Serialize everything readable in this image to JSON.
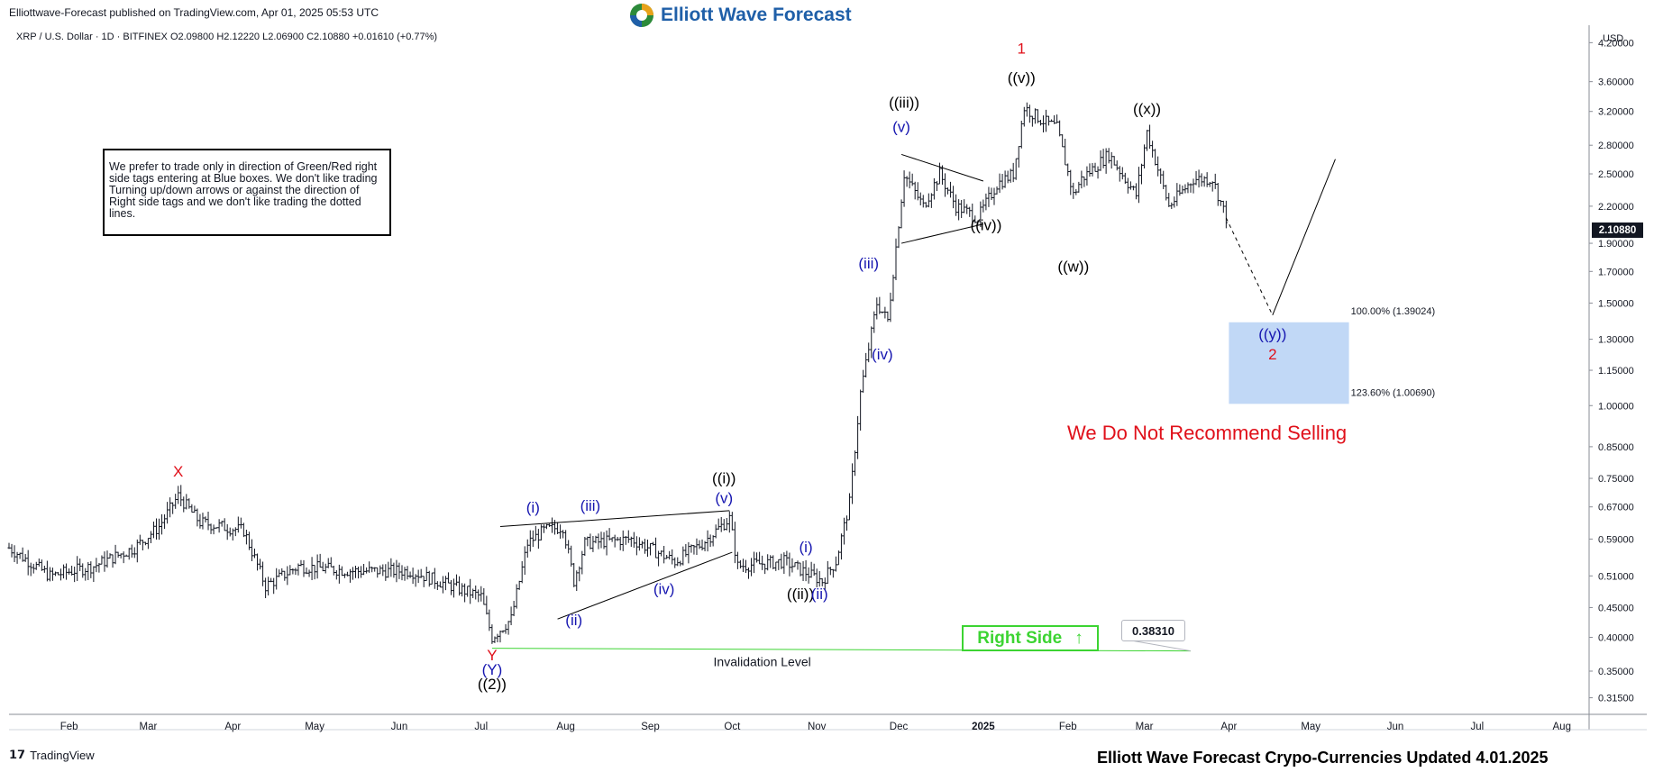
{
  "header": {
    "published": "Elliottwave-Forecast published on TradingView.com, Apr 01, 2025 05:53 UTC",
    "logo_text": "Elliott Wave Forecast"
  },
  "legend": {
    "symbol": "XRP / U.S. Dollar · 1D · BITFINEX",
    "open": "O2.09800",
    "high": "H2.12220",
    "low": "L2.06900",
    "close": "C2.10880",
    "change": "+0.01610 (+0.77%)"
  },
  "disclaimer": "We prefer to trade only in direction of Green/Red right side tags entering at Blue boxes. We don't like trading Turning up/down arrows or against the direction of Right side tags and we don't like trading the dotted lines.",
  "no_sell": "We Do Not Recommend Selling",
  "right_side": {
    "label": "Right Side",
    "arrow": "↑"
  },
  "invalidation": {
    "label": "Invalidation Level",
    "price": "0.38310",
    "value": 0.3831
  },
  "current_price": "2.10880",
  "footer": "Elliott Wave Forecast Crypo-Currencies Updated 4.01.2025",
  "tv_brand": "TradingView",
  "colors": {
    "up": "#131722",
    "blue_box": "#b6d1f5",
    "green": "#3cd432",
    "red": "#e0101a",
    "navy": "#1616b0"
  },
  "chart_data": {
    "type": "ohlc",
    "scale": "log",
    "y_unit": "USD",
    "ylim": [
      0.295,
      4.5
    ],
    "xlim": [
      "2024-01-10",
      "2025-08-10"
    ],
    "x_ticks": [
      {
        "label": "Feb",
        "date": "2024-02-01"
      },
      {
        "label": "Mar",
        "date": "2024-03-01"
      },
      {
        "label": "Apr",
        "date": "2024-04-01"
      },
      {
        "label": "May",
        "date": "2024-05-01"
      },
      {
        "label": "Jun",
        "date": "2024-06-01"
      },
      {
        "label": "Jul",
        "date": "2024-07-01"
      },
      {
        "label": "Aug",
        "date": "2024-08-01"
      },
      {
        "label": "Sep",
        "date": "2024-09-01"
      },
      {
        "label": "Oct",
        "date": "2024-10-01"
      },
      {
        "label": "Nov",
        "date": "2024-11-01"
      },
      {
        "label": "Dec",
        "date": "2024-12-01"
      },
      {
        "label": "2025",
        "date": "2025-01-01"
      },
      {
        "label": "Feb",
        "date": "2025-02-01"
      },
      {
        "label": "Mar",
        "date": "2025-03-01"
      },
      {
        "label": "Apr",
        "date": "2025-04-01"
      },
      {
        "label": "May",
        "date": "2025-05-01"
      },
      {
        "label": "Jun",
        "date": "2025-06-01"
      },
      {
        "label": "Jul",
        "date": "2025-07-01"
      },
      {
        "label": "Aug",
        "date": "2025-08-01"
      }
    ],
    "y_ticks": [
      "4.20000",
      "3.60000",
      "3.20000",
      "2.80000",
      "2.50000",
      "2.20000",
      "1.90000",
      "1.70000",
      "1.50000",
      "1.30000",
      "1.15000",
      "1.00000",
      "0.85000",
      "0.75000",
      "0.67000",
      "0.59000",
      "0.51000",
      "0.45000",
      "0.40000",
      "0.35000",
      "0.31500"
    ],
    "price_path": [
      [
        "2024-01-10",
        0.57
      ],
      [
        "2024-01-25",
        0.51
      ],
      [
        "2024-02-10",
        0.53
      ],
      [
        "2024-02-25",
        0.57
      ],
      [
        "2024-03-05",
        0.62
      ],
      [
        "2024-03-12",
        0.7
      ],
      [
        "2024-03-20",
        0.63
      ],
      [
        "2024-04-05",
        0.61
      ],
      [
        "2024-04-13",
        0.49
      ],
      [
        "2024-04-25",
        0.53
      ],
      [
        "2024-05-15",
        0.52
      ],
      [
        "2024-06-05",
        0.52
      ],
      [
        "2024-06-20",
        0.49
      ],
      [
        "2024-07-01",
        0.47
      ],
      [
        "2024-07-05",
        0.4
      ],
      [
        "2024-07-12",
        0.43
      ],
      [
        "2024-07-18",
        0.58
      ],
      [
        "2024-07-24",
        0.61
      ],
      [
        "2024-07-31",
        0.62
      ],
      [
        "2024-08-04",
        0.5
      ],
      [
        "2024-08-08",
        0.58
      ],
      [
        "2024-08-25",
        0.59
      ],
      [
        "2024-09-10",
        0.54
      ],
      [
        "2024-09-20",
        0.58
      ],
      [
        "2024-09-30",
        0.64
      ],
      [
        "2024-10-03",
        0.53
      ],
      [
        "2024-10-20",
        0.54
      ],
      [
        "2024-11-03",
        0.5
      ],
      [
        "2024-11-08",
        0.54
      ],
      [
        "2024-11-13",
        0.68
      ],
      [
        "2024-11-17",
        1.05
      ],
      [
        "2024-11-23",
        1.5
      ],
      [
        "2024-11-27",
        1.4
      ],
      [
        "2024-12-03",
        2.5
      ],
      [
        "2024-12-10",
        2.2
      ],
      [
        "2024-12-16",
        2.5
      ],
      [
        "2024-12-22",
        2.2
      ],
      [
        "2024-12-30",
        2.1
      ],
      [
        "2025-01-06",
        2.4
      ],
      [
        "2025-01-12",
        2.5
      ],
      [
        "2025-01-16",
        3.25
      ],
      [
        "2025-01-22",
        3.1
      ],
      [
        "2025-01-28",
        3.0
      ],
      [
        "2025-02-03",
        2.3
      ],
      [
        "2025-02-06",
        2.45
      ],
      [
        "2025-02-16",
        2.7
      ],
      [
        "2025-02-26",
        2.3
      ],
      [
        "2025-03-02",
        2.95
      ],
      [
        "2025-03-10",
        2.2
      ],
      [
        "2025-03-19",
        2.45
      ],
      [
        "2025-03-26",
        2.45
      ],
      [
        "2025-03-31",
        2.1
      ]
    ],
    "projection": {
      "dashed": [
        [
          "2025-03-31",
          2.1
        ],
        [
          "2025-04-17",
          1.43
        ]
      ],
      "solid": [
        [
          "2025-04-17",
          1.43
        ],
        [
          "2025-05-10",
          2.65
        ]
      ]
    },
    "blue_box": {
      "x0": "2025-04-01",
      "x1": "2025-05-15",
      "top": 1.39024,
      "bottom": 1.0069
    },
    "fib_levels": [
      {
        "label": "100.00% (1.39024)",
        "value": 1.39024
      },
      {
        "label": "123.60% (1.00690)",
        "value": 1.0069
      }
    ],
    "trendlines": [
      {
        "from": [
          "2024-07-08",
          0.62
        ],
        "to": [
          "2024-09-30",
          0.66
        ]
      },
      {
        "from": [
          "2024-07-29",
          0.43
        ],
        "to": [
          "2024-10-01",
          0.56
        ]
      },
      {
        "from": [
          "2024-12-02",
          2.7
        ],
        "to": [
          "2025-01-01",
          2.43
        ]
      },
      {
        "from": [
          "2024-12-02",
          1.9
        ],
        "to": [
          "2025-01-01",
          2.05
        ]
      }
    ],
    "labels": [
      {
        "text": "X",
        "date": "2024-03-12",
        "price": 0.755,
        "color": "red"
      },
      {
        "text": "Y",
        "date": "2024-07-05",
        "price": 0.365,
        "color": "red"
      },
      {
        "text": "(Y)",
        "date": "2024-07-05",
        "price": 0.345,
        "color": "navy"
      },
      {
        "text": "((2))",
        "date": "2024-07-05",
        "price": 0.326,
        "color": "black"
      },
      {
        "text": "(i)",
        "date": "2024-07-20",
        "price": 0.655,
        "color": "navy"
      },
      {
        "text": "(ii)",
        "date": "2024-08-04",
        "price": 0.42,
        "color": "navy"
      },
      {
        "text": "(iii)",
        "date": "2024-08-10",
        "price": 0.66,
        "color": "navy"
      },
      {
        "text": "(iv)",
        "date": "2024-09-06",
        "price": 0.475,
        "color": "navy"
      },
      {
        "text": "(v)",
        "date": "2024-09-28",
        "price": 0.68,
        "color": "navy"
      },
      {
        "text": "((i))",
        "date": "2024-09-28",
        "price": 0.735,
        "color": "black"
      },
      {
        "text": "(i)",
        "date": "2024-10-28",
        "price": 0.56,
        "color": "navy"
      },
      {
        "text": "((ii))",
        "date": "2024-10-26",
        "price": 0.465,
        "color": "black"
      },
      {
        "text": "(ii)",
        "date": "2024-11-02",
        "price": 0.465,
        "color": "navy"
      },
      {
        "text": "(iii)",
        "date": "2024-11-20",
        "price": 1.72,
        "color": "navy"
      },
      {
        "text": "(iv)",
        "date": "2024-11-25",
        "price": 1.2,
        "color": "navy"
      },
      {
        "text": "(v)",
        "date": "2024-12-02",
        "price": 2.95,
        "color": "navy"
      },
      {
        "text": "((iii))",
        "date": "2024-12-03",
        "price": 3.25,
        "color": "black"
      },
      {
        "text": "((iv))",
        "date": "2025-01-02",
        "price": 2.0,
        "color": "black"
      },
      {
        "text": "((v))",
        "date": "2025-01-15",
        "price": 3.58,
        "color": "black"
      },
      {
        "text": "1",
        "date": "2025-01-15",
        "price": 4.02,
        "color": "red"
      },
      {
        "text": "((w))",
        "date": "2025-02-03",
        "price": 1.7,
        "color": "black"
      },
      {
        "text": "((x))",
        "date": "2025-03-02",
        "price": 3.17,
        "color": "black"
      },
      {
        "text": "((y))",
        "date": "2025-04-17",
        "price": 1.3,
        "color": "navy"
      },
      {
        "text": "2",
        "date": "2025-04-17",
        "price": 1.2,
        "color": "red"
      }
    ]
  }
}
